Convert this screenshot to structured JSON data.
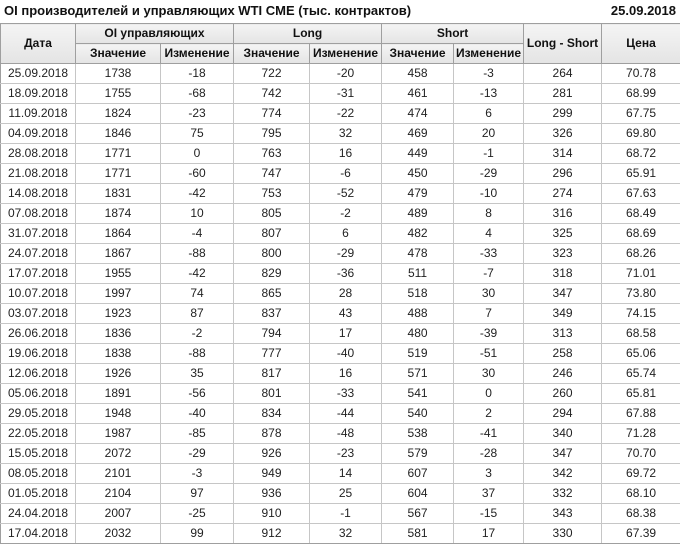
{
  "header": {
    "title": "OI производителей и управляющих WTI CME (тыс. контрактов)",
    "date": "25.09.2018"
  },
  "colors": {
    "positive": "#2e8b3a",
    "negative": "#c41f28",
    "header_bg": "#ececec",
    "border": "#c6c6c6"
  },
  "table": {
    "columns": {
      "date": "Дата",
      "groups": [
        {
          "label": "OI управляющих",
          "sub": [
            "Значение",
            "Изменение"
          ]
        },
        {
          "label": "Long",
          "sub": [
            "Значение",
            "Изменение"
          ]
        },
        {
          "label": "Short",
          "sub": [
            "Значение",
            "Изменение"
          ]
        }
      ],
      "long_short": "Long - Short",
      "price": "Цена"
    },
    "rows": [
      {
        "date": "25.09.2018",
        "oi_value": "1738",
        "oi_change": "-18",
        "oi_change_dir": "neg",
        "long_value": "722",
        "long_change": "-20",
        "long_change_dir": "neg",
        "short_value": "458",
        "short_change": "-3",
        "short_change_dir": "neg",
        "long_short": "264",
        "price": "70.78"
      },
      {
        "date": "18.09.2018",
        "oi_value": "1755",
        "oi_change": "-68",
        "oi_change_dir": "neg",
        "long_value": "742",
        "long_change": "-31",
        "long_change_dir": "neg",
        "short_value": "461",
        "short_change": "-13",
        "short_change_dir": "neg",
        "long_short": "281",
        "price": "68.99"
      },
      {
        "date": "11.09.2018",
        "oi_value": "1824",
        "oi_change": "-23",
        "oi_change_dir": "neg",
        "long_value": "774",
        "long_change": "-22",
        "long_change_dir": "neg",
        "short_value": "474",
        "short_change": "6",
        "short_change_dir": "pos",
        "long_short": "299",
        "price": "67.75"
      },
      {
        "date": "04.09.2018",
        "oi_value": "1846",
        "oi_change": "75",
        "oi_change_dir": "pos",
        "long_value": "795",
        "long_change": "32",
        "long_change_dir": "pos",
        "short_value": "469",
        "short_change": "20",
        "short_change_dir": "pos",
        "long_short": "326",
        "price": "69.80"
      },
      {
        "date": "28.08.2018",
        "oi_value": "1771",
        "oi_change": "0",
        "oi_change_dir": "neg",
        "long_value": "763",
        "long_change": "16",
        "long_change_dir": "pos",
        "short_value": "449",
        "short_change": "-1",
        "short_change_dir": "neg",
        "long_short": "314",
        "price": "68.72"
      },
      {
        "date": "21.08.2018",
        "oi_value": "1771",
        "oi_change": "-60",
        "oi_change_dir": "neg",
        "long_value": "747",
        "long_change": "-6",
        "long_change_dir": "neg",
        "short_value": "450",
        "short_change": "-29",
        "short_change_dir": "neg",
        "long_short": "296",
        "price": "65.91"
      },
      {
        "date": "14.08.2018",
        "oi_value": "1831",
        "oi_change": "-42",
        "oi_change_dir": "neg",
        "long_value": "753",
        "long_change": "-52",
        "long_change_dir": "neg",
        "short_value": "479",
        "short_change": "-10",
        "short_change_dir": "neg",
        "long_short": "274",
        "price": "67.63"
      },
      {
        "date": "07.08.2018",
        "oi_value": "1874",
        "oi_change": "10",
        "oi_change_dir": "pos",
        "long_value": "805",
        "long_change": "-2",
        "long_change_dir": "neg",
        "short_value": "489",
        "short_change": "8",
        "short_change_dir": "pos",
        "long_short": "316",
        "price": "68.49"
      },
      {
        "date": "31.07.2018",
        "oi_value": "1864",
        "oi_change": "-4",
        "oi_change_dir": "neg",
        "long_value": "807",
        "long_change": "6",
        "long_change_dir": "pos",
        "short_value": "482",
        "short_change": "4",
        "short_change_dir": "pos",
        "long_short": "325",
        "price": "68.69"
      },
      {
        "date": "24.07.2018",
        "oi_value": "1867",
        "oi_change": "-88",
        "oi_change_dir": "neg",
        "long_value": "800",
        "long_change": "-29",
        "long_change_dir": "neg",
        "short_value": "478",
        "short_change": "-33",
        "short_change_dir": "neg",
        "long_short": "323",
        "price": "68.26"
      },
      {
        "date": "17.07.2018",
        "oi_value": "1955",
        "oi_change": "-42",
        "oi_change_dir": "neg",
        "long_value": "829",
        "long_change": "-36",
        "long_change_dir": "neg",
        "short_value": "511",
        "short_change": "-7",
        "short_change_dir": "neg",
        "long_short": "318",
        "price": "71.01"
      },
      {
        "date": "10.07.2018",
        "oi_value": "1997",
        "oi_change": "74",
        "oi_change_dir": "pos",
        "long_value": "865",
        "long_change": "28",
        "long_change_dir": "pos",
        "short_value": "518",
        "short_change": "30",
        "short_change_dir": "pos",
        "long_short": "347",
        "price": "73.80"
      },
      {
        "date": "03.07.2018",
        "oi_value": "1923",
        "oi_change": "87",
        "oi_change_dir": "pos",
        "long_value": "837",
        "long_change": "43",
        "long_change_dir": "pos",
        "short_value": "488",
        "short_change": "7",
        "short_change_dir": "pos",
        "long_short": "349",
        "price": "74.15"
      },
      {
        "date": "26.06.2018",
        "oi_value": "1836",
        "oi_change": "-2",
        "oi_change_dir": "neg",
        "long_value": "794",
        "long_change": "17",
        "long_change_dir": "pos",
        "short_value": "480",
        "short_change": "-39",
        "short_change_dir": "neg",
        "long_short": "313",
        "price": "68.58"
      },
      {
        "date": "19.06.2018",
        "oi_value": "1838",
        "oi_change": "-88",
        "oi_change_dir": "neg",
        "long_value": "777",
        "long_change": "-40",
        "long_change_dir": "neg",
        "short_value": "519",
        "short_change": "-51",
        "short_change_dir": "neg",
        "long_short": "258",
        "price": "65.06"
      },
      {
        "date": "12.06.2018",
        "oi_value": "1926",
        "oi_change": "35",
        "oi_change_dir": "pos",
        "long_value": "817",
        "long_change": "16",
        "long_change_dir": "pos",
        "short_value": "571",
        "short_change": "30",
        "short_change_dir": "pos",
        "long_short": "246",
        "price": "65.74"
      },
      {
        "date": "05.06.2018",
        "oi_value": "1891",
        "oi_change": "-56",
        "oi_change_dir": "neg",
        "long_value": "801",
        "long_change": "-33",
        "long_change_dir": "neg",
        "short_value": "541",
        "short_change": "0",
        "short_change_dir": "pos",
        "long_short": "260",
        "price": "65.81"
      },
      {
        "date": "29.05.2018",
        "oi_value": "1948",
        "oi_change": "-40",
        "oi_change_dir": "neg",
        "long_value": "834",
        "long_change": "-44",
        "long_change_dir": "neg",
        "short_value": "540",
        "short_change": "2",
        "short_change_dir": "pos",
        "long_short": "294",
        "price": "67.88"
      },
      {
        "date": "22.05.2018",
        "oi_value": "1987",
        "oi_change": "-85",
        "oi_change_dir": "neg",
        "long_value": "878",
        "long_change": "-48",
        "long_change_dir": "neg",
        "short_value": "538",
        "short_change": "-41",
        "short_change_dir": "neg",
        "long_short": "340",
        "price": "71.28"
      },
      {
        "date": "15.05.2018",
        "oi_value": "2072",
        "oi_change": "-29",
        "oi_change_dir": "neg",
        "long_value": "926",
        "long_change": "-23",
        "long_change_dir": "neg",
        "short_value": "579",
        "short_change": "-28",
        "short_change_dir": "neg",
        "long_short": "347",
        "price": "70.70"
      },
      {
        "date": "08.05.2018",
        "oi_value": "2101",
        "oi_change": "-3",
        "oi_change_dir": "neg",
        "long_value": "949",
        "long_change": "14",
        "long_change_dir": "pos",
        "short_value": "607",
        "short_change": "3",
        "short_change_dir": "pos",
        "long_short": "342",
        "price": "69.72"
      },
      {
        "date": "01.05.2018",
        "oi_value": "2104",
        "oi_change": "97",
        "oi_change_dir": "pos",
        "long_value": "936",
        "long_change": "25",
        "long_change_dir": "pos",
        "short_value": "604",
        "short_change": "37",
        "short_change_dir": "pos",
        "long_short": "332",
        "price": "68.10"
      },
      {
        "date": "24.04.2018",
        "oi_value": "2007",
        "oi_change": "-25",
        "oi_change_dir": "neg",
        "long_value": "910",
        "long_change": "-1",
        "long_change_dir": "neg",
        "short_value": "567",
        "short_change": "-15",
        "short_change_dir": "neg",
        "long_short": "343",
        "price": "68.38"
      },
      {
        "date": "17.04.2018",
        "oi_value": "2032",
        "oi_change": "99",
        "oi_change_dir": "pos",
        "long_value": "912",
        "long_change": "32",
        "long_change_dir": "pos",
        "short_value": "581",
        "short_change": "17",
        "short_change_dir": "pos",
        "long_short": "330",
        "price": "67.39"
      }
    ]
  }
}
